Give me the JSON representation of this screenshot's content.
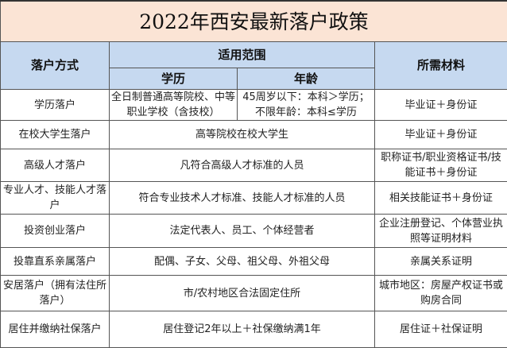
{
  "title": "2022年西安最新落户政策",
  "headers": {
    "method": "落户方式",
    "scope": "适用范围",
    "education": "学历",
    "age": "年龄",
    "materials": "所需材料"
  },
  "rows": [
    {
      "method": "学历落户",
      "education": "全日制普通高等院校、中等职业学校（含技校）",
      "age": "45周岁以下：本科＞学历；不限年龄：本科≤学历",
      "materials": "毕业证＋身份证"
    },
    {
      "method": "在校大学生落户",
      "scope": "高等院校在校大学生",
      "materials": "毕业证＋身份证"
    },
    {
      "method": "高级人才落户",
      "scope": "凡符合高级人才标准的人员",
      "materials": "职称证书/职业资格证书/技能证书＋身份证"
    },
    {
      "method": "专业人才、技能人才落户",
      "scope": "符合专业技术人才标准、技能人才标准的人员",
      "materials": "相关技能证书＋身份证"
    },
    {
      "method": "投资创业落户",
      "scope": "法定代表人、员工、个体经营者",
      "materials": "企业注册登记、个体营业执照等证明材料"
    },
    {
      "method": "投靠直系亲属落户",
      "scope": "配偶、子女、父母、祖父母、外祖父母",
      "materials": "亲属关系证明"
    },
    {
      "method": "安居落户（拥有法住所落户）",
      "scope": "市/农村地区合法固定住所",
      "materials": "城市地区：房屋产权证书或购房合同"
    },
    {
      "method": "居住并缴纳社保落户",
      "scope": "居住登记2年以上＋社保缴纳满1年",
      "materials": "居住证＋社保证明"
    }
  ]
}
